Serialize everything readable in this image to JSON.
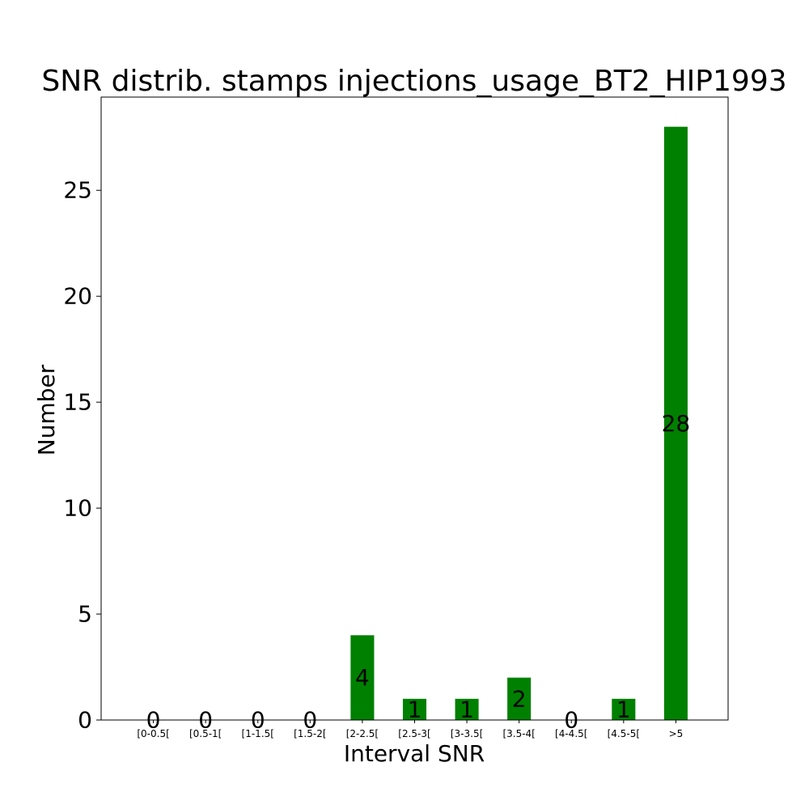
{
  "chart_data": {
    "type": "bar",
    "title": "SNR distrib. stamps injections_usage_BT2_HIP1993",
    "xlabel": "Interval SNR",
    "ylabel": "Number",
    "categories": [
      "[0-0.5[",
      "[0.5-1[",
      "[1-1.5[",
      "[1.5-2[",
      "[2-2.5[",
      "[2.5-3[",
      "[3-3.5[",
      "[3.5-4[",
      "[4-4.5[",
      "[4.5-5[",
      ">5"
    ],
    "values": [
      0,
      0,
      0,
      0,
      4,
      1,
      1,
      2,
      0,
      1,
      28
    ],
    "value_labels": [
      "0",
      "0",
      "0",
      "0",
      "4",
      "1",
      "1",
      "2",
      "0",
      "1",
      "28"
    ],
    "yticks": [
      0,
      5,
      10,
      15,
      20,
      25
    ],
    "ytick_labels": [
      "0",
      "5",
      "10",
      "15",
      "20",
      "25"
    ],
    "ylim": [
      0,
      29.4
    ],
    "bar_color": "#008000",
    "grid": false
  }
}
